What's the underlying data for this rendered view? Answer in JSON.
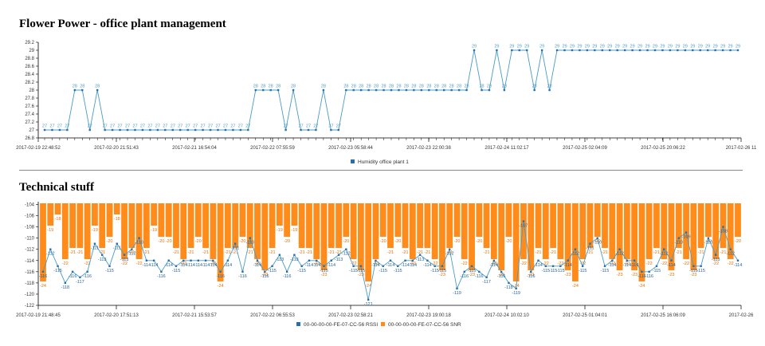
{
  "page": {
    "title1": "Flower Power - office plant management",
    "title2": "Technical stuff"
  },
  "colors": {
    "humidity": "#4a9cc6",
    "rssi": "#2a6fa8",
    "snr": "#ff8c1a",
    "axis": "#000",
    "label_rssi": "#1f5f9a",
    "label_snr": "#e07010"
  },
  "chart_data": [
    {
      "type": "line",
      "title": "Flower Power - office plant management",
      "ylim": [
        26.8,
        29.2
      ],
      "y_ticks": [
        "26.8",
        "27",
        "27.2",
        "27.4",
        "27.6",
        "27.8",
        "28",
        "28.2",
        "28.4",
        "28.6",
        "28.8",
        "29",
        "29.2"
      ],
      "x_ticks": [
        "2017-02-19 22:48:52",
        "2017-02-20 21:51:43",
        "2017-02-21 16:54:04",
        "2017-02-22 07:55:59",
        "2017-02-23 05:58:44",
        "2017-02-23 22:00:38",
        "2017-02-24 11:02:17",
        "2017-02-25 02:04:09",
        "2017-02-25 20:06:22",
        "2017-02-26 11"
      ],
      "legend": [
        "Humidity office plant 1"
      ],
      "series": [
        {
          "name": "Humidity office plant 1",
          "values": [
            27,
            27,
            27,
            27,
            28,
            28,
            27,
            28,
            27,
            27,
            27,
            27,
            27,
            27,
            27,
            27,
            27,
            27,
            27,
            27,
            27,
            27,
            27,
            27,
            27,
            27,
            27,
            27,
            28,
            28,
            28,
            28,
            27,
            28,
            27,
            27,
            27,
            28,
            27,
            27,
            28,
            28,
            28,
            28,
            28,
            28,
            28,
            28,
            28,
            28,
            28,
            28,
            28,
            28,
            28,
            28,
            28,
            29,
            28,
            28,
            29,
            28,
            29,
            29,
            29,
            28,
            29,
            28,
            29,
            29,
            29,
            29,
            29,
            29,
            29,
            29,
            29,
            29,
            29,
            29,
            29,
            29,
            29,
            29,
            29,
            29,
            29,
            29,
            29,
            29,
            29,
            29,
            29
          ]
        }
      ]
    },
    {
      "type": "bar-line",
      "title": "Technical stuff",
      "ylim": [
        -122,
        -103.5
      ],
      "y_ticks": [
        "-104",
        "-106",
        "-108",
        "-110",
        "-112",
        "-114",
        "-116",
        "-118",
        "-120",
        "-122"
      ],
      "x_ticks": [
        "2017-02-19 21:48:45",
        "2017-02-20 17:51:13",
        "2017-02-21 15:53:57",
        "2017-02-22 06:55:53",
        "2017-02-23 02:58:21",
        "2017-02-23 19:00:18",
        "2017-02-24 10:02:10",
        "2017-02-25 01:04:01",
        "2017-02-25 16:06:09",
        "2017-02-26"
      ],
      "legend": [
        "00-00-00-00-FE-07-CC-56 RSSI",
        "00-00-00-00-FE-07-CC-56 SNR"
      ],
      "series": [
        {
          "name": "00-00-00-00-FE-07-CC-56 RSSI",
          "values": [
            -116,
            -112,
            -115,
            -118,
            -116,
            -117,
            -116,
            -111,
            -113,
            -115,
            -111,
            -113,
            -112,
            -110,
            -114,
            -114,
            -116,
            -114,
            -115,
            -114,
            -114,
            -114,
            -114,
            -114,
            -116,
            -114,
            -111,
            -116,
            -110,
            -114,
            -116,
            -115,
            -113,
            -116,
            -113,
            -115,
            -114,
            -114,
            -115,
            -114,
            -113,
            -112,
            -115,
            -115,
            -121,
            -114,
            -115,
            -114,
            -115,
            -114,
            -114,
            -113,
            -114,
            -115,
            -115,
            -112,
            -119,
            -116,
            -115,
            -116,
            -117,
            -114,
            -116,
            -118,
            -119,
            -107,
            -116,
            -114,
            -115,
            -115,
            -115,
            -114,
            -112,
            -115,
            -111,
            -110,
            -115,
            -114,
            -112,
            -114,
            -114,
            -116,
            -116,
            -115,
            -112,
            -114,
            -110,
            -109,
            -115,
            -115,
            -110,
            -113,
            -108,
            -112,
            -114
          ]
        },
        {
          "name": "00-00-00-00-FE-07-CC-56 SNR",
          "values": [
            -24,
            -19,
            -18,
            -22,
            -21,
            -21,
            -22,
            -19,
            -21,
            -20,
            -18,
            -22,
            -21,
            -22,
            -21,
            -19,
            -20,
            -20,
            -21,
            -22,
            -21,
            -20,
            -21,
            -22,
            -24,
            -21,
            -21,
            -20,
            -21,
            -22,
            -23,
            -21,
            -19,
            -20,
            -19,
            -21,
            -21,
            -22,
            -23,
            -21,
            -21,
            -20,
            -22,
            -23,
            -24,
            -22,
            -20,
            -21,
            -20,
            -21,
            -22,
            -21,
            -21,
            -22,
            -23,
            -21,
            -20,
            -22,
            -23,
            -20,
            -21,
            -22,
            -23,
            -20,
            -24,
            -22,
            -23,
            -21,
            -22,
            -21,
            -22,
            -23,
            -24,
            -22,
            -21,
            -20,
            -21,
            -22,
            -23,
            -22,
            -23,
            -24,
            -22,
            -21,
            -22,
            -23,
            -21,
            -22,
            -23,
            -21,
            -20,
            -22,
            -21,
            -22,
            -20
          ]
        }
      ]
    }
  ]
}
